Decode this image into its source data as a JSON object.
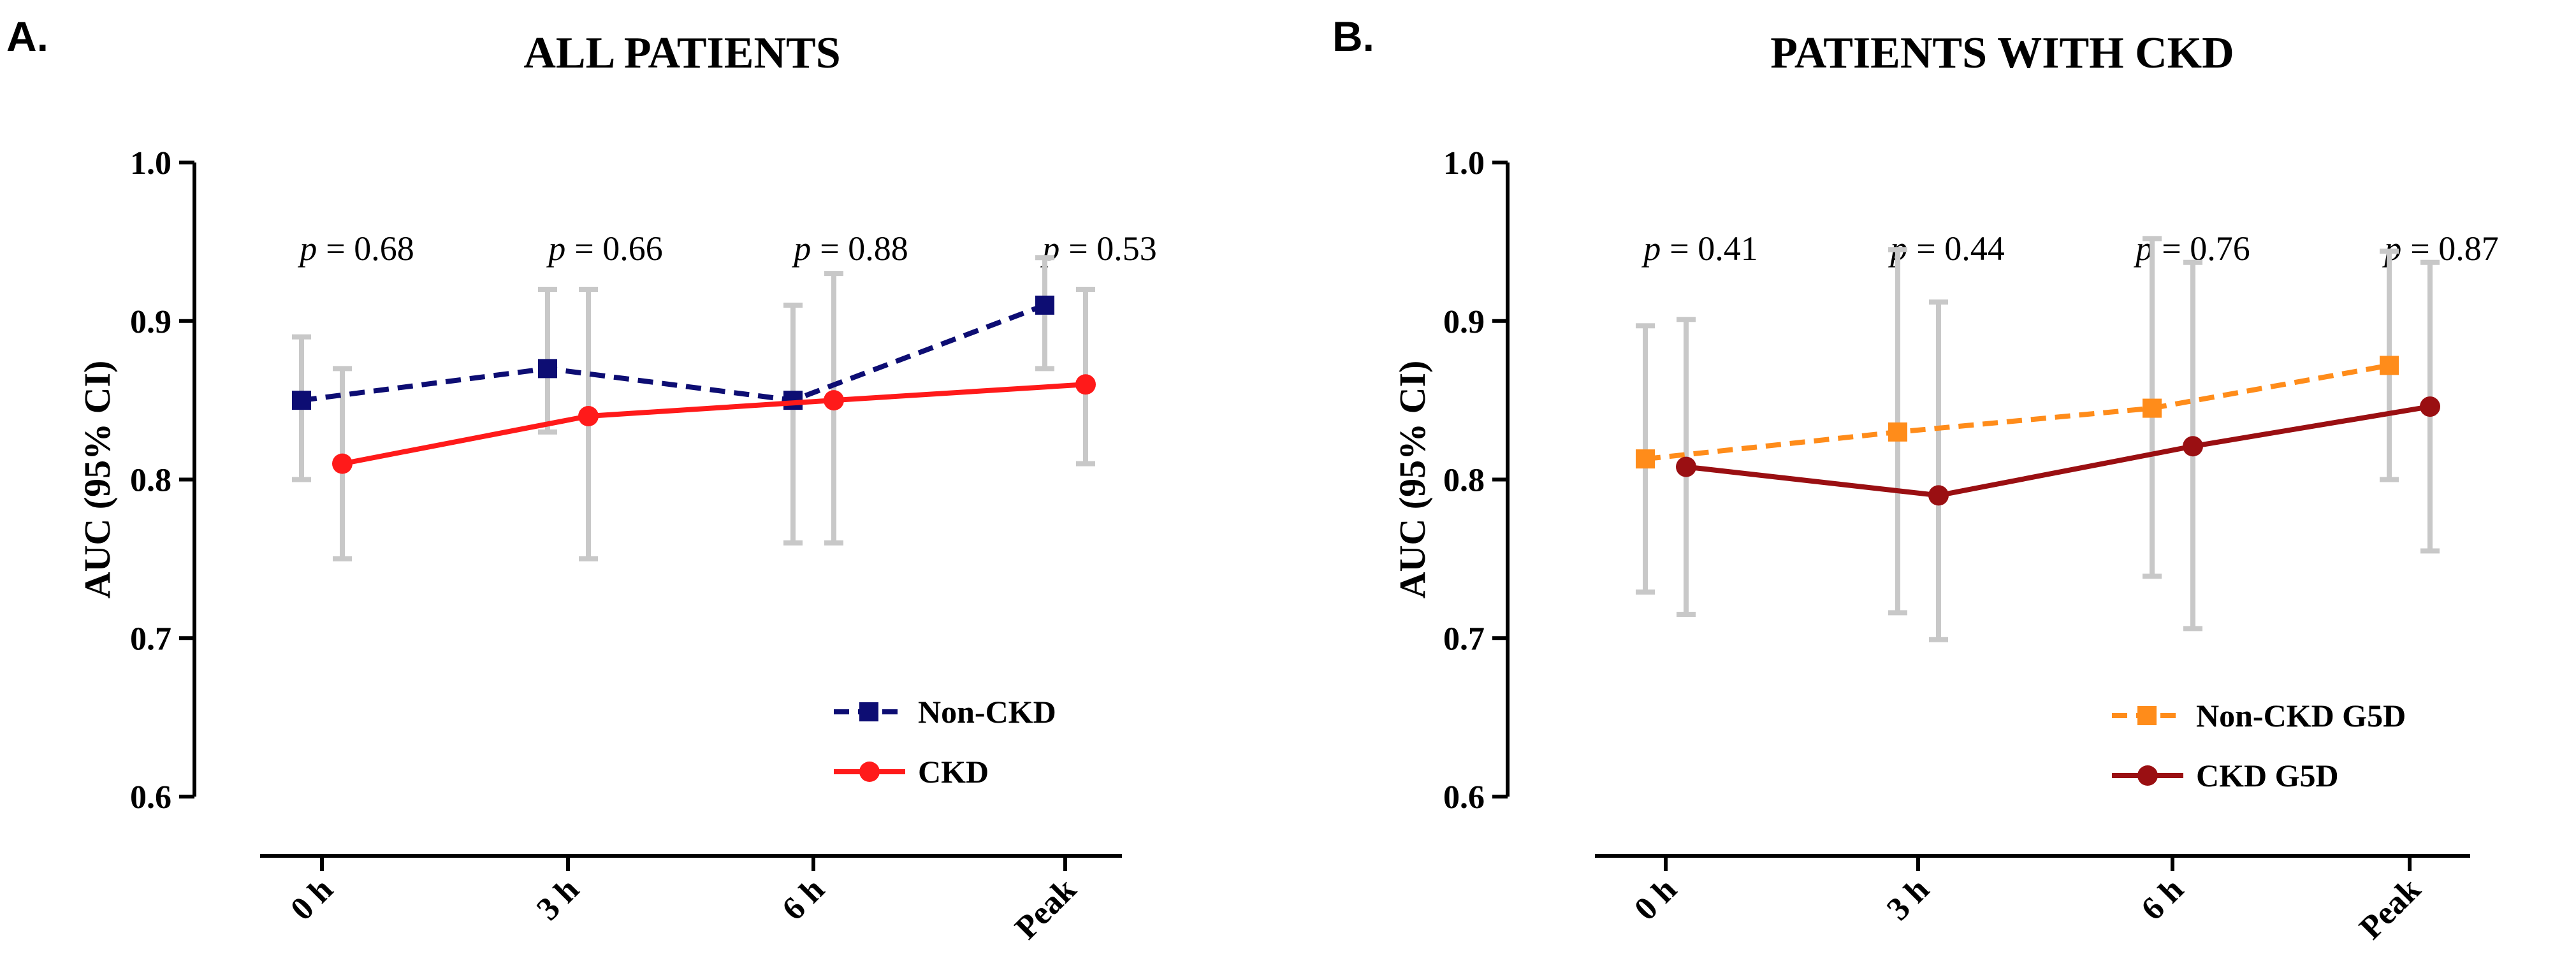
{
  "chart_data": [
    {
      "type": "line",
      "panel_label": "A.",
      "title": "ALL PATIENTS",
      "xlabel": "",
      "ylabel": "AUC (95% CI)",
      "ylim": [
        0.6,
        1.0
      ],
      "yticks": [
        "0.6",
        "0.7",
        "0.8",
        "0.9",
        "1.0"
      ],
      "categories": [
        "0 h",
        "3 h",
        "6 h",
        "Peak"
      ],
      "p_prefix": "p",
      "p_values": [
        "= 0.68",
        "= 0.66",
        "= 0.88",
        "= 0.53"
      ],
      "series": [
        {
          "name": "Non-CKD",
          "color": "#0d0d73",
          "line_style": "dashed",
          "marker": "square",
          "values": [
            0.85,
            0.87,
            0.85,
            0.91
          ],
          "ci_low": [
            0.8,
            0.83,
            0.76,
            0.87
          ],
          "ci_high": [
            0.89,
            0.92,
            0.91,
            0.94
          ]
        },
        {
          "name": "CKD",
          "color": "#ff1a1a",
          "line_style": "solid",
          "marker": "circle",
          "values": [
            0.81,
            0.84,
            0.85,
            0.86
          ],
          "ci_low": [
            0.75,
            0.75,
            0.76,
            0.81
          ],
          "ci_high": [
            0.87,
            0.92,
            0.93,
            0.92
          ]
        }
      ]
    },
    {
      "type": "line",
      "panel_label": "B.",
      "title": "PATIENTS WITH CKD",
      "xlabel": "",
      "ylabel": "AUC (95% CI)",
      "ylim": [
        0.6,
        1.0
      ],
      "yticks": [
        "0.6",
        "0.7",
        "0.8",
        "0.9",
        "1.0"
      ],
      "categories": [
        "0 h",
        "3 h",
        "6 h",
        "Peak"
      ],
      "p_prefix": "p",
      "p_values": [
        "= 0.41",
        "= 0.44",
        "= 0.76",
        "= 0.87"
      ],
      "series": [
        {
          "name": "Non-CKD G5D",
          "color": "#ff8c1a",
          "line_style": "dashed",
          "marker": "square",
          "values": [
            0.813,
            0.83,
            0.845,
            0.872
          ],
          "ci_low": [
            0.729,
            0.716,
            0.739,
            0.8
          ],
          "ci_high": [
            0.897,
            0.945,
            0.952,
            0.944
          ]
        },
        {
          "name": "CKD G5D",
          "color": "#9a0f12",
          "line_style": "solid",
          "marker": "circle",
          "values": [
            0.808,
            0.79,
            0.821,
            0.846
          ],
          "ci_low": [
            0.715,
            0.699,
            0.706,
            0.755
          ],
          "ci_high": [
            0.901,
            0.912,
            0.937,
            0.937
          ]
        }
      ]
    }
  ]
}
